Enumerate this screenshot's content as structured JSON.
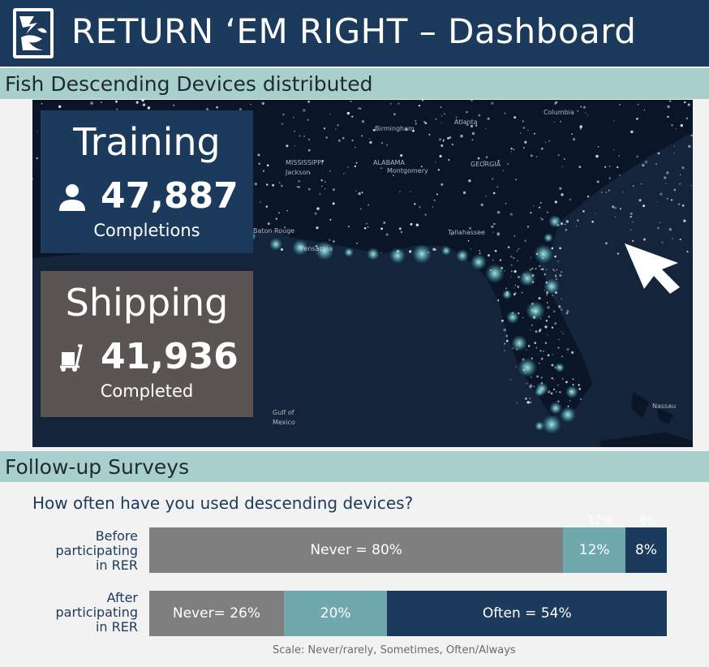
{
  "header": {
    "title": "RETURN ‘EM RIGHT – Dashboard",
    "logo_icon": "fish-logo-icon"
  },
  "sections": {
    "devices_title": "Fish Descending Devices distributed",
    "surveys_title": "Follow-up Surveys"
  },
  "map": {
    "labels": {
      "mississippi": "MISSISSIPPI",
      "alabama": "ALABAMA",
      "georgia": "GEORGIA",
      "jackson": "Jackson",
      "montgomery": "Montgomery",
      "birmingham": "Birmingham",
      "atlanta": "Atlanta",
      "columbia": "Columbia",
      "tallahassee": "Tallahassee",
      "baton_rouge": "Baton Rouge",
      "pensacola": "Pensacola",
      "gulf": "Gulf of",
      "mexico": "Mexico",
      "nassau": "Nassau"
    },
    "pointer_icon": "cursor-arrow-icon"
  },
  "training": {
    "title": "Training",
    "value": "47,887",
    "caption": "Completions",
    "icon": "person-icon",
    "color": "#1b3a5c"
  },
  "shipping": {
    "title": "Shipping",
    "value": "41,936",
    "caption": "Completed",
    "icon": "hand-truck-icon",
    "color": "#5a5553"
  },
  "survey": {
    "question": "How often have you used descending devices?",
    "before": {
      "label_lines": [
        "Before",
        "participating",
        "in RER"
      ],
      "segments": [
        {
          "label": "Never = 80%",
          "value": 80,
          "color": "#7f7f7f"
        },
        {
          "label": "12%",
          "value": 12,
          "color": "#6fa9ae"
        },
        {
          "label": "8%",
          "value": 8,
          "color": "#1b3a5c"
        }
      ],
      "ghost_labels": [
        "12%",
        "8%"
      ]
    },
    "after": {
      "label_lines": [
        "After",
        "participating",
        "in RER"
      ],
      "segments": [
        {
          "label": "Never= 26%",
          "value": 26,
          "color": "#7f7f7f"
        },
        {
          "label": "20%",
          "value": 20,
          "color": "#6fa9ae"
        },
        {
          "label": "Often = 54%",
          "value": 54,
          "color": "#1b3a5c"
        }
      ]
    },
    "scale": "Scale: Never/rarely, Sometimes, Often/Always"
  }
}
